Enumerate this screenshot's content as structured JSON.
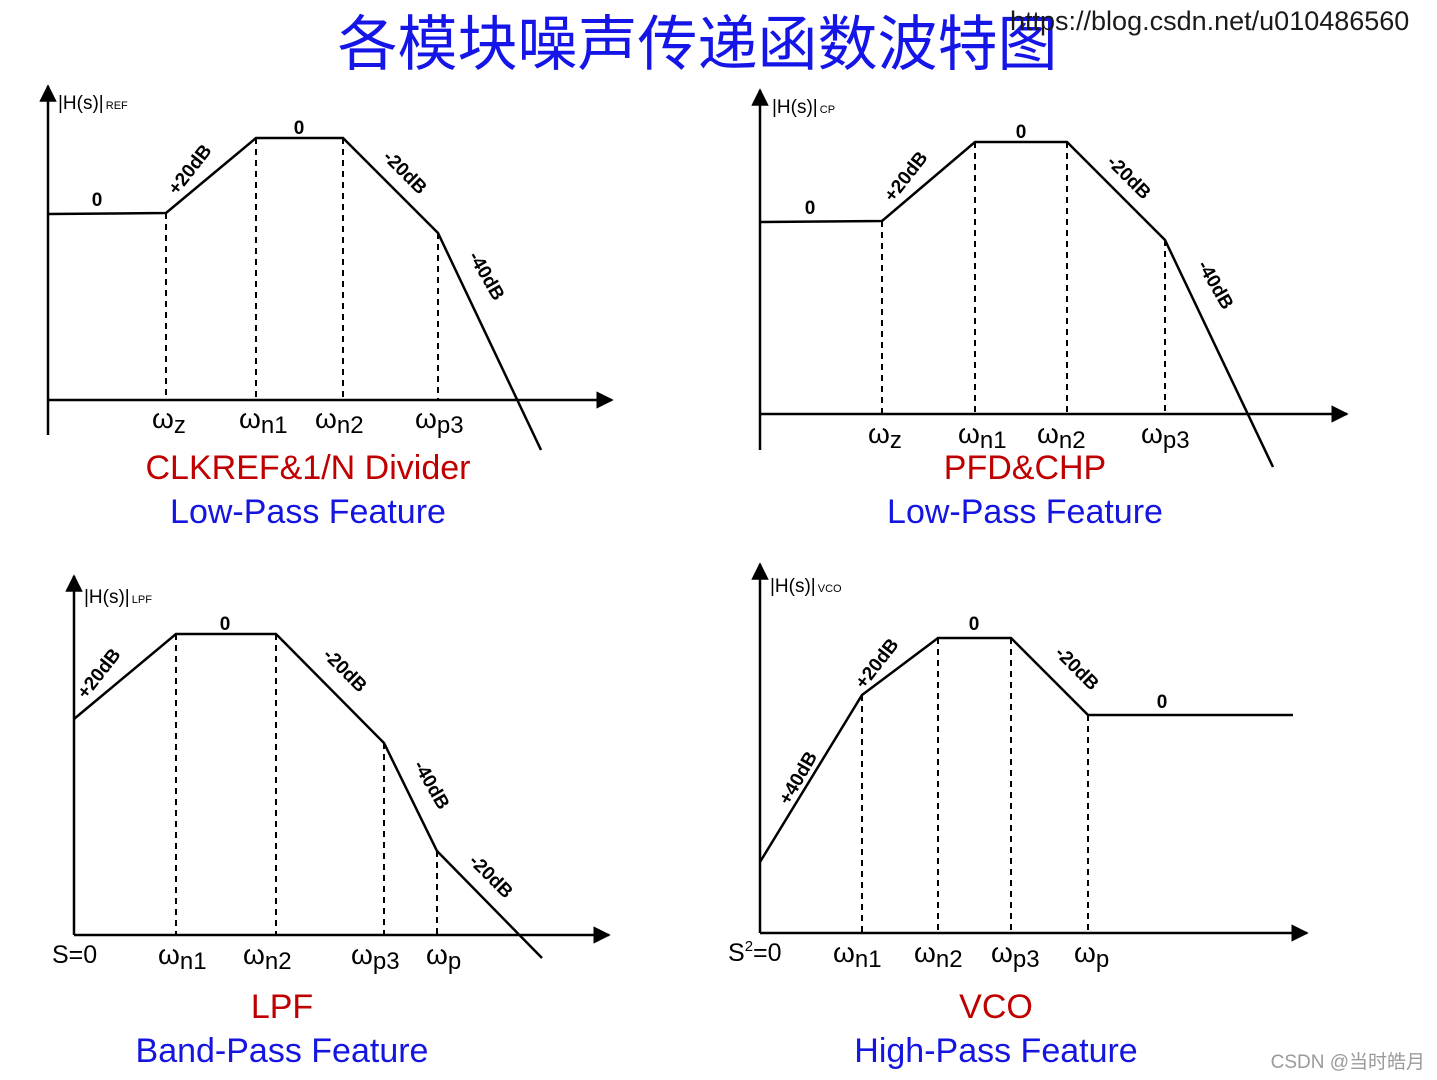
{
  "title": "各模块噪声传递函数波特图",
  "watermark_url": "https://blog.csdn.net/u010486560",
  "credit": "CSDN @当时皓月",
  "panels": [
    {
      "caption": "CLKREF&1/N Divider",
      "subcaption": "Low-Pass Feature",
      "ylabel_main": "|H(s)|",
      "ylabel_sub": "REF",
      "origin_label": "",
      "ticks": [
        {
          "main": "ω",
          "sub": "z"
        },
        {
          "main": "ω",
          "sub": "n1"
        },
        {
          "main": "ω",
          "sub": "n2"
        },
        {
          "main": "ω",
          "sub": "p3"
        }
      ],
      "slope_labels": [
        "0",
        "+20dB",
        "0",
        "-20dB",
        "-40dB"
      ]
    },
    {
      "caption": "PFD&CHP",
      "subcaption": "Low-Pass Feature",
      "ylabel_main": "|H(s)|",
      "ylabel_sub": "CP",
      "origin_label": "",
      "ticks": [
        {
          "main": "ω",
          "sub": "z"
        },
        {
          "main": "ω",
          "sub": "n1"
        },
        {
          "main": "ω",
          "sub": "n2"
        },
        {
          "main": "ω",
          "sub": "p3"
        }
      ],
      "slope_labels": [
        "0",
        "+20dB",
        "0",
        "-20dB",
        "-40dB"
      ]
    },
    {
      "caption": "LPF",
      "subcaption": "Band-Pass Feature",
      "ylabel_main": "|H(s)|",
      "ylabel_sub": "LPF",
      "origin_label": "S=0",
      "ticks": [
        {
          "main": "ω",
          "sub": "n1"
        },
        {
          "main": "ω",
          "sub": "n2"
        },
        {
          "main": "ω",
          "sub": "p3"
        },
        {
          "main": "ω",
          "sub": "p"
        }
      ],
      "slope_labels": [
        "+20dB",
        "0",
        "-20dB",
        "-40dB",
        "-20dB"
      ]
    },
    {
      "caption": "VCO",
      "subcaption": "High-Pass Feature",
      "ylabel_main": "|H(s)|",
      "ylabel_sub": "VCO",
      "origin_label": "S",
      "origin_sup": "2",
      "origin_rest": "=0",
      "ticks": [
        {
          "main": "ω",
          "sub": "n1"
        },
        {
          "main": "ω",
          "sub": "n2"
        },
        {
          "main": "ω",
          "sub": "p3"
        },
        {
          "main": "ω",
          "sub": "p"
        }
      ],
      "slope_labels": [
        "+40dB",
        "+20dB",
        "0",
        "-20dB",
        "0"
      ]
    }
  ],
  "colors": {
    "title": "#1515e8",
    "caption_red": "#c00000",
    "caption_blue": "#1515e0",
    "lines": "#000000"
  }
}
